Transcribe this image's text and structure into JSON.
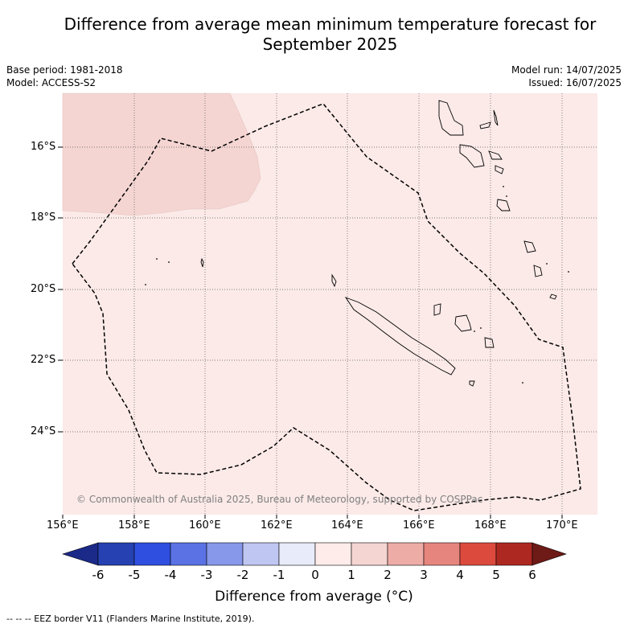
{
  "title": "Difference from average mean minimum temperature forecast for September 2025",
  "header": {
    "base_period": "Base period: 1981-2018",
    "model": "Model: ACCESS-S2",
    "model_run": "Model run: 14/07/2025",
    "issued": "Issued: 16/07/2025"
  },
  "axes": {
    "lat_labels": [
      "16°S",
      "18°S",
      "20°S",
      "22°S",
      "24°S"
    ],
    "lon_labels": [
      "156°E",
      "158°E",
      "160°E",
      "162°E",
      "164°E",
      "166°E",
      "168°E",
      "170°E"
    ]
  },
  "colors": {
    "anomaly_0_1": "#fbeae8",
    "anomaly_1_2": "#f4d5d2",
    "eez_border": "#000000",
    "gridline": "#555555"
  },
  "copyright": "© Commonwealth of Australia 2025, Bureau of Meteorology, supported by COSPPac",
  "colorbar": {
    "title": "Difference from average (°C)",
    "tick_labels": [
      "-6",
      "-5",
      "-4",
      "-3",
      "-2",
      "-1",
      "0",
      "1",
      "2",
      "3",
      "4",
      "5",
      "6"
    ],
    "colors": [
      "#1b2a88",
      "#2541b2",
      "#2f4fe0",
      "#5a72e4",
      "#8797ea",
      "#bfc6f2",
      "#e8ebfa",
      "#fdece9",
      "#f4d5d2",
      "#eeaca7",
      "#e6857d",
      "#dc4a3e",
      "#ad2821",
      "#6e1a17"
    ]
  },
  "footnote": "-- -- -- EEZ border V11 (Flanders Marine Institute, 2019)."
}
